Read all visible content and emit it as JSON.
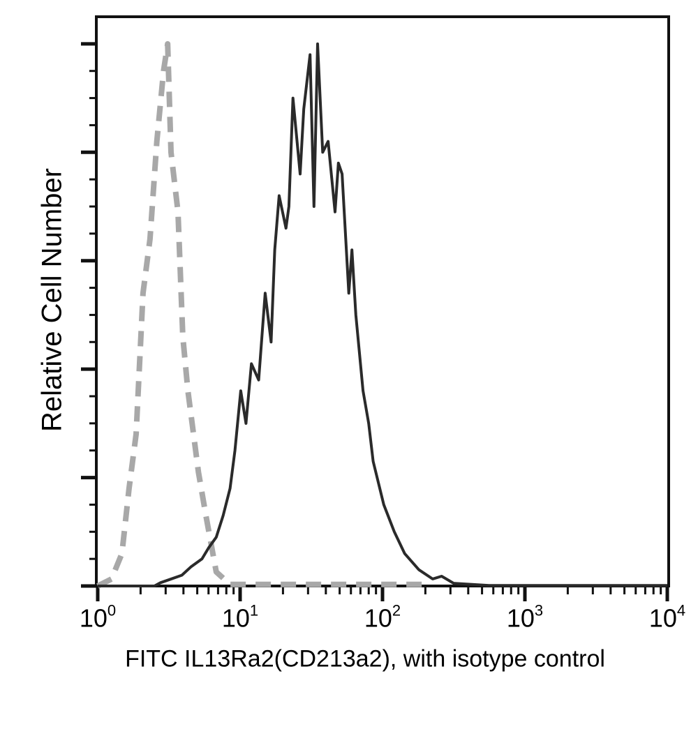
{
  "chart_data": {
    "type": "line",
    "title": "",
    "xlabel": "FITC IL13Ra2(CD213a2), with isotype control",
    "ylabel": "Relative Cell Number",
    "xscale": "log",
    "xlim": [
      1,
      10000
    ],
    "ylim": [
      0,
      105
    ],
    "x_ticks": [
      {
        "base": "10",
        "exp": "0",
        "value": 1
      },
      {
        "base": "10",
        "exp": "1",
        "value": 10
      },
      {
        "base": "10",
        "exp": "2",
        "value": 100
      },
      {
        "base": "10",
        "exp": "3",
        "value": 1000
      },
      {
        "base": "10",
        "exp": "4",
        "value": 10000
      }
    ],
    "y_major_ticks": [
      0,
      20,
      40,
      60,
      80,
      100
    ],
    "y_tick_labels_shown": false,
    "grid": false,
    "series": [
      {
        "color": "#2a2a2a",
        "style": "solid",
        "x": [
          1.0,
          2.5,
          2.76,
          3.2,
          3.9,
          4.5,
          5.4,
          6.0,
          6.8,
          7.6,
          8.5,
          9.2,
          10.1,
          11,
          12,
          13.5,
          15,
          16.5,
          17.5,
          18.8,
          21,
          22,
          23.5,
          26.4,
          28,
          31,
          33,
          35,
          38,
          41.5,
          46.4,
          49,
          52,
          58,
          61,
          65,
          73,
          80,
          86,
          102,
          121,
          143,
          180,
          225,
          260,
          316,
          560,
          1000,
          10000
        ],
        "y": [
          0,
          0,
          0.6,
          1.2,
          2,
          3.5,
          5,
          7,
          9,
          13,
          18,
          25,
          36,
          30,
          41,
          38,
          54,
          45,
          62,
          72,
          66,
          70,
          90,
          76,
          88,
          98,
          70,
          100,
          80,
          82,
          69,
          78,
          76,
          54,
          62,
          50,
          36,
          30,
          23,
          15,
          10,
          6,
          3,
          1.3,
          1.8,
          0.5,
          0.1,
          0.1,
          0.1
        ]
      },
      {
        "color": "#a8a8a8",
        "style": "dashed",
        "x": [
          1.0,
          1.25,
          1.48,
          1.66,
          1.86,
          2.08,
          2.33,
          2.6,
          2.9,
          3.1,
          3.27,
          3.66,
          3.96,
          4.3,
          5.1,
          5.75,
          6.8,
          8.5,
          20,
          100,
          200
        ],
        "y": [
          0,
          1.3,
          6,
          18,
          28,
          54,
          64,
          82,
          95,
          100,
          80,
          69,
          46,
          36,
          21,
          13,
          2.6,
          0.3,
          0.3,
          0.3,
          0.3
        ]
      }
    ]
  }
}
